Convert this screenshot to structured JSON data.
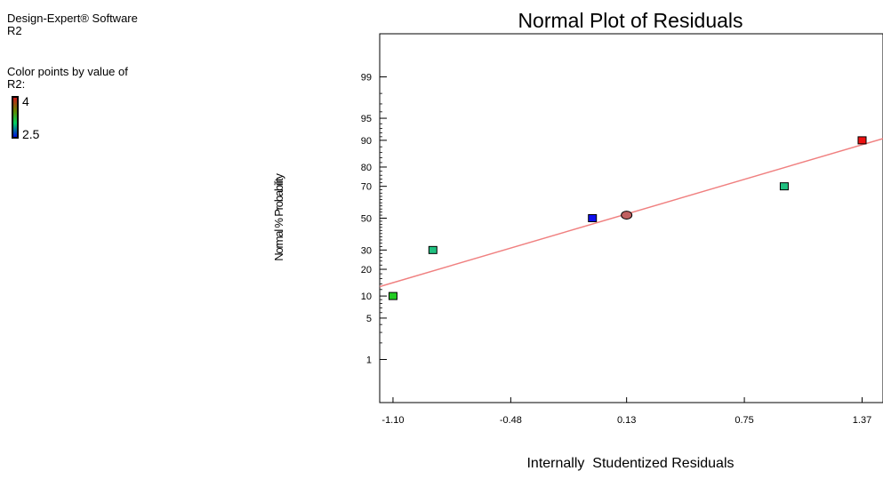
{
  "info": {
    "software": "Design-Expert® Software",
    "response": "R2",
    "color_by_label": "Color points by value of",
    "color_by_response": "R2:",
    "color_scale_high": "4",
    "color_scale_low": "2.5",
    "color_high": "#cc1a1a",
    "color_low": "#0010e0"
  },
  "chart_data": {
    "type": "scatter",
    "title": "Normal Plot of Residuals",
    "xlabel": "Internally  Studentized Residuals",
    "ylabel": "Normal % Probability",
    "xlim": [
      -1.17,
      1.48
    ],
    "ylim": [
      0.12,
      99.88
    ],
    "y_scale": "normal-probability",
    "x_ticks": [
      -1.1,
      -0.48,
      0.13,
      0.75,
      1.37
    ],
    "x_tick_labels": [
      "-1.10",
      "-0.48",
      "0.13",
      "0.75",
      "1.37"
    ],
    "y_ticks": [
      1,
      5,
      10,
      20,
      30,
      50,
      70,
      80,
      90,
      95,
      99
    ],
    "y_tick_labels": [
      "1",
      "5",
      "10",
      "20",
      "30",
      "50",
      "70",
      "80",
      "90",
      "95",
      "99"
    ],
    "grid": false,
    "points": [
      {
        "x": -1.1,
        "y": 10,
        "color": "#22cc22",
        "shape": "square"
      },
      {
        "x": -0.89,
        "y": 30,
        "color": "#20c080",
        "shape": "square"
      },
      {
        "x": -0.05,
        "y": 50,
        "color": "#1010ee",
        "shape": "square"
      },
      {
        "x": 0.13,
        "y": 52,
        "color": "#c06060",
        "shape": "circle"
      },
      {
        "x": 0.96,
        "y": 70,
        "color": "#20c080",
        "shape": "square"
      },
      {
        "x": 1.37,
        "y": 90,
        "color": "#ee1010",
        "shape": "square"
      }
    ],
    "fit_line": {
      "color": "#f08080",
      "x": [
        -1.17,
        1.48
      ],
      "y": [
        13,
        90.5
      ]
    }
  }
}
